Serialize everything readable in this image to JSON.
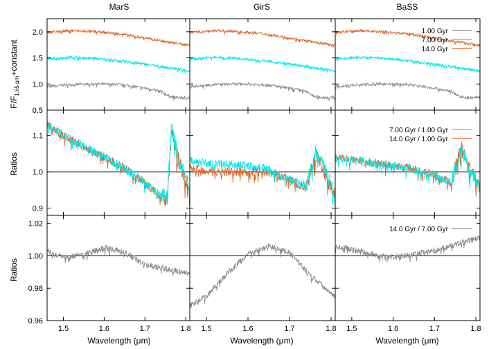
{
  "chart_data": {
    "type": "line",
    "columns": [
      "MarS",
      "GirS",
      "BaSS"
    ],
    "xlabel": "Wavelength (μm)",
    "xlim": [
      1.46,
      1.81
    ],
    "xticks": [
      "1.5",
      "1.6",
      "1.7",
      "1.8"
    ],
    "colors": {
      "1.00 Gyr": "#8c8c8c",
      "7.00 Gyr": "#00e5e5",
      "14.0 Gyr": "#e2632a",
      "ratio_7_1": "#00e5e5",
      "ratio_14_1": "#e2632a",
      "ratio_14_7": "#8c8c8c"
    },
    "rows": [
      {
        "ylabel_main": "F/F",
        "ylabel_sub": "1.65 μm",
        "ylabel_tail": "+constant",
        "ylim": [
          0.5,
          2.25
        ],
        "yticks": [
          "0.5",
          "1.0",
          "1.5",
          "2.0"
        ],
        "legend": [
          "1.00 Gyr",
          "7.00 Gyr",
          "14.0 Gyr"
        ],
        "series": [
          {
            "name": "1.00 Gyr",
            "x": [
              1.46,
              1.52,
              1.58,
              1.64,
              1.7,
              1.74,
              1.76,
              1.78,
              1.81
            ],
            "y": [
              0.95,
              0.99,
              1.0,
              0.99,
              0.92,
              0.86,
              0.76,
              0.74,
              0.74
            ]
          },
          {
            "name": "7.00 Gyr",
            "x": [
              1.46,
              1.52,
              1.58,
              1.64,
              1.7,
              1.76,
              1.81
            ],
            "y": [
              1.48,
              1.51,
              1.49,
              1.44,
              1.38,
              1.31,
              1.25
            ]
          },
          {
            "name": "14.0 Gyr",
            "x": [
              1.46,
              1.52,
              1.58,
              1.64,
              1.7,
              1.76,
              1.81
            ],
            "y": [
              1.99,
              2.02,
              2.0,
              1.96,
              1.88,
              1.8,
              1.74
            ]
          }
        ]
      },
      {
        "ylabel_main": "Ratios",
        "ylim": [
          0.88,
          1.17
        ],
        "yticks": [
          "0.9",
          "1.0",
          "1.1"
        ],
        "refline": 1.0,
        "legend": [
          "7.00 Gyr / 1.00 Gyr",
          "14.0 Gyr / 1.00 Gyr"
        ],
        "panels": [
          {
            "series": [
              {
                "name": "7.00 Gyr / 1.00 Gyr",
                "x": [
                  1.46,
                  1.5,
                  1.55,
                  1.6,
                  1.65,
                  1.7,
                  1.74,
                  1.755,
                  1.765,
                  1.78,
                  1.81
                ],
                "y": [
                  1.13,
                  1.1,
                  1.07,
                  1.04,
                  1.01,
                  0.97,
                  0.935,
                  0.93,
                  1.12,
                  1.05,
                  0.95
                ]
              },
              {
                "name": "14.0 Gyr / 1.00 Gyr",
                "x": [
                  1.46,
                  1.5,
                  1.55,
                  1.6,
                  1.65,
                  1.7,
                  1.74,
                  1.755,
                  1.765,
                  1.78,
                  1.81
                ],
                "y": [
                  1.13,
                  1.1,
                  1.07,
                  1.04,
                  1.01,
                  0.97,
                  0.93,
                  0.925,
                  1.11,
                  1.04,
                  0.94
                ]
              }
            ]
          },
          {
            "series": [
              {
                "name": "7.00 Gyr / 1.00 Gyr",
                "x": [
                  1.46,
                  1.52,
                  1.58,
                  1.64,
                  1.7,
                  1.74,
                  1.765,
                  1.78,
                  1.81
                ],
                "y": [
                  1.03,
                  1.02,
                  1.02,
                  1.01,
                  0.98,
                  0.96,
                  1.06,
                  1.02,
                  0.94
                ]
              },
              {
                "name": "14.0 Gyr / 1.00 Gyr",
                "x": [
                  1.46,
                  1.52,
                  1.58,
                  1.64,
                  1.7,
                  1.74,
                  1.765,
                  1.78,
                  1.81
                ],
                "y": [
                  1.01,
                  1.0,
                  1.0,
                  1.0,
                  0.98,
                  0.95,
                  1.05,
                  1.01,
                  0.93
                ]
              }
            ]
          },
          {
            "series": [
              {
                "name": "7.00 Gyr / 1.00 Gyr",
                "x": [
                  1.46,
                  1.52,
                  1.58,
                  1.64,
                  1.7,
                  1.74,
                  1.765,
                  1.78,
                  1.81
                ],
                "y": [
                  1.04,
                  1.03,
                  1.02,
                  1.01,
                  0.99,
                  0.97,
                  1.06,
                  1.02,
                  0.96
                ]
              },
              {
                "name": "14.0 Gyr / 1.00 Gyr",
                "x": [
                  1.46,
                  1.52,
                  1.58,
                  1.64,
                  1.7,
                  1.74,
                  1.765,
                  1.78,
                  1.81
                ],
                "y": [
                  1.04,
                  1.03,
                  1.02,
                  1.01,
                  0.99,
                  0.97,
                  1.07,
                  1.02,
                  0.96
                ]
              }
            ]
          }
        ]
      },
      {
        "ylabel_main": "Ratios",
        "ylim": [
          0.96,
          1.025
        ],
        "yticks": [
          "0.96",
          "0.98",
          "1.00",
          "1.02"
        ],
        "refline": 1.0,
        "legend": [
          "14.0 Gyr / 7.00 Gyr"
        ],
        "panels": [
          {
            "series": [
              {
                "name": "14.0 Gyr / 7.00 Gyr",
                "x": [
                  1.46,
                  1.5,
                  1.55,
                  1.6,
                  1.65,
                  1.7,
                  1.75,
                  1.81
                ],
                "y": [
                  1.003,
                  0.999,
                  1.001,
                  1.005,
                  1.002,
                  0.995,
                  0.992,
                  0.989
                ]
              }
            ]
          },
          {
            "series": [
              {
                "name": "14.0 Gyr / 7.00 Gyr",
                "x": [
                  1.46,
                  1.5,
                  1.55,
                  1.6,
                  1.65,
                  1.7,
                  1.75,
                  1.81
                ],
                "y": [
                  0.969,
                  0.975,
                  0.989,
                  1.001,
                  1.006,
                  1.002,
                  0.988,
                  0.975
                ]
              }
            ]
          },
          {
            "series": [
              {
                "name": "14.0 Gyr / 7.00 Gyr",
                "x": [
                  1.46,
                  1.5,
                  1.55,
                  1.6,
                  1.65,
                  1.7,
                  1.75,
                  1.81
                ],
                "y": [
                  1.006,
                  1.004,
                  1.001,
                  0.999,
                  1.001,
                  1.003,
                  1.007,
                  1.011
                ]
              }
            ]
          }
        ]
      }
    ]
  }
}
